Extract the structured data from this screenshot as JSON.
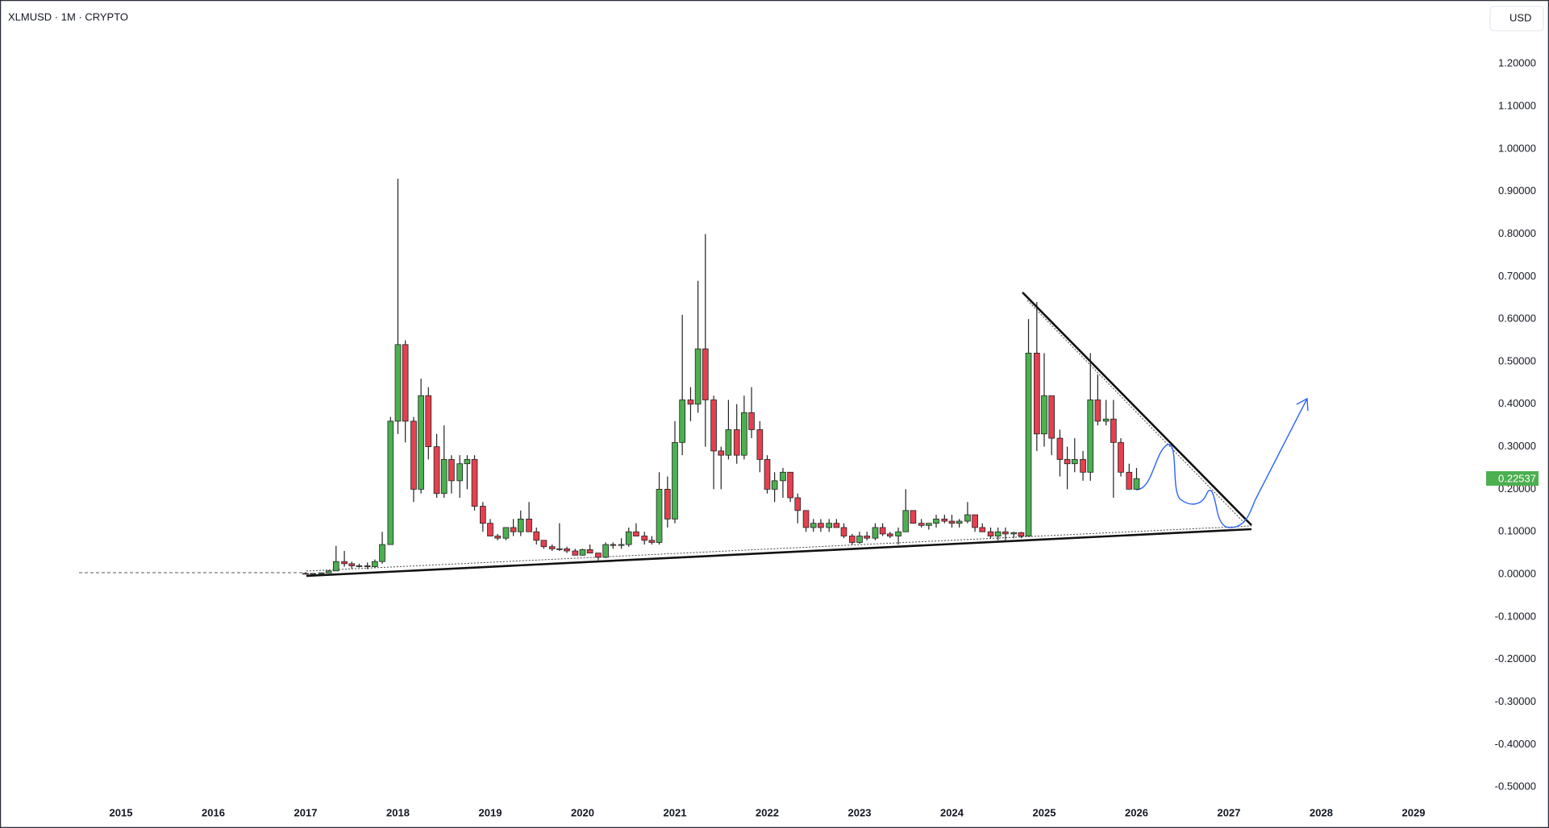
{
  "chart_data": {
    "type": "candlestick",
    "title": "XLMUSD · 1M · CRYPTO",
    "currency": "USD",
    "up_color": "#4caf50",
    "down_color": "#e5404f",
    "grid": false,
    "xlim": [
      2013.69,
      2029.76
    ],
    "xticks": [
      2015,
      2016,
      2017,
      2018,
      2019,
      2020,
      2021,
      2022,
      2023,
      2024,
      2025,
      2026,
      2027,
      2028,
      2029
    ],
    "ylim": [
      -0.53,
      1.35
    ],
    "yticks": [
      {
        "value": -0.5,
        "label": "-0.50000"
      },
      {
        "value": -0.4,
        "label": "-0.40000"
      },
      {
        "value": -0.3,
        "label": "-0.30000"
      },
      {
        "value": -0.2,
        "label": "-0.20000"
      },
      {
        "value": -0.1,
        "label": "-0.10000"
      },
      {
        "value": 0,
        "label": "0.00000"
      },
      {
        "value": 0.1,
        "label": "0.10000"
      },
      {
        "value": 0.2,
        "label": "0.20000"
      },
      {
        "value": 0.3,
        "label": "0.30000"
      },
      {
        "value": 0.4,
        "label": "0.40000"
      },
      {
        "value": 0.5,
        "label": "0.50000"
      },
      {
        "value": 0.6,
        "label": "0.60000"
      },
      {
        "value": 0.7,
        "label": "0.70000"
      },
      {
        "value": 0.8,
        "label": "0.80000"
      },
      {
        "value": 0.9,
        "label": "0.90000"
      },
      {
        "value": 1.0,
        "label": "1.00000"
      },
      {
        "value": 1.1,
        "label": "1.10000"
      },
      {
        "value": 1.2,
        "label": "1.20000"
      }
    ],
    "last_price": 0.22537,
    "x": [
      2017,
      2017.08,
      2017.17,
      2017.25,
      2017.33,
      2017.42,
      2017.5,
      2017.58,
      2017.67,
      2017.75,
      2017.83,
      2017.92,
      2018,
      2018.08,
      2018.17,
      2018.25,
      2018.33,
      2018.42,
      2018.5,
      2018.58,
      2018.67,
      2018.75,
      2018.83,
      2018.92,
      2019,
      2019.08,
      2019.17,
      2019.25,
      2019.33,
      2019.42,
      2019.5,
      2019.58,
      2019.67,
      2019.75,
      2019.83,
      2019.92,
      2020,
      2020.08,
      2020.17,
      2020.25,
      2020.33,
      2020.42,
      2020.5,
      2020.58,
      2020.67,
      2020.75,
      2020.83,
      2020.92,
      2021,
      2021.08,
      2021.17,
      2021.25,
      2021.33,
      2021.42,
      2021.5,
      2021.58,
      2021.67,
      2021.75,
      2021.83,
      2021.92,
      2022,
      2022.08,
      2022.17,
      2022.25,
      2022.33,
      2022.42,
      2022.5,
      2022.58,
      2022.67,
      2022.75,
      2022.83,
      2022.92,
      2023,
      2023.08,
      2023.17,
      2023.25,
      2023.33,
      2023.42,
      2023.5,
      2023.58,
      2023.67,
      2023.75,
      2023.83,
      2023.92,
      2024,
      2024.08,
      2024.17,
      2024.25,
      2024.33,
      2024.42,
      2024.5,
      2024.58,
      2024.67,
      2024.75,
      2024.83,
      2024.92,
      2025,
      2025.08,
      2025.17,
      2025.25,
      2025.33,
      2025.42,
      2025.5,
      2025.58,
      2025.67,
      2025.75,
      2025.83,
      2025.92,
      2026
    ],
    "open": [
      0.0022,
      0.0021,
      0.0021,
      0.0035,
      0.008,
      0.03,
      0.025,
      0.02,
      0.02,
      0.018,
      0.03,
      0.07,
      0.36,
      0.54,
      0.36,
      0.2,
      0.42,
      0.3,
      0.19,
      0.27,
      0.22,
      0.26,
      0.27,
      0.16,
      0.12,
      0.09,
      0.085,
      0.11,
      0.1,
      0.13,
      0.1,
      0.08,
      0.065,
      0.06,
      0.06,
      0.055,
      0.045,
      0.058,
      0.05,
      0.04,
      0.07,
      0.068,
      0.07,
      0.1,
      0.09,
      0.08,
      0.075,
      0.2,
      0.13,
      0.31,
      0.41,
      0.4,
      0.53,
      0.41,
      0.29,
      0.28,
      0.34,
      0.28,
      0.38,
      0.34,
      0.27,
      0.2,
      0.22,
      0.24,
      0.18,
      0.15,
      0.11,
      0.12,
      0.11,
      0.12,
      0.11,
      0.09,
      0.075,
      0.09,
      0.085,
      0.11,
      0.095,
      0.09,
      0.1,
      0.15,
      0.12,
      0.115,
      0.12,
      0.13,
      0.125,
      0.12,
      0.125,
      0.14,
      0.11,
      0.1,
      0.09,
      0.1,
      0.095,
      0.098,
      0.09,
      0.52,
      0.33,
      0.42,
      0.32,
      0.27,
      0.26,
      0.27,
      0.24,
      0.41,
      0.36,
      0.365,
      0.31,
      0.24,
      0.2
    ],
    "high": [
      0.0025,
      0.0024,
      0.004,
      0.01,
      0.067,
      0.055,
      0.03,
      0.025,
      0.028,
      0.035,
      0.1,
      0.37,
      0.93,
      0.55,
      0.37,
      0.46,
      0.44,
      0.33,
      0.35,
      0.28,
      0.28,
      0.28,
      0.28,
      0.17,
      0.13,
      0.095,
      0.11,
      0.13,
      0.15,
      0.17,
      0.11,
      0.08,
      0.07,
      0.12,
      0.065,
      0.06,
      0.06,
      0.07,
      0.05,
      0.075,
      0.075,
      0.085,
      0.11,
      0.12,
      0.1,
      0.09,
      0.24,
      0.23,
      0.36,
      0.61,
      0.44,
      0.69,
      0.8,
      0.42,
      0.3,
      0.41,
      0.4,
      0.42,
      0.44,
      0.36,
      0.28,
      0.24,
      0.25,
      0.24,
      0.19,
      0.15,
      0.13,
      0.13,
      0.13,
      0.13,
      0.12,
      0.095,
      0.1,
      0.1,
      0.12,
      0.12,
      0.1,
      0.11,
      0.2,
      0.15,
      0.13,
      0.12,
      0.14,
      0.14,
      0.14,
      0.13,
      0.17,
      0.14,
      0.12,
      0.11,
      0.11,
      0.11,
      0.1,
      0.1,
      0.6,
      0.64,
      0.52,
      0.42,
      0.34,
      0.3,
      0.32,
      0.29,
      0.52,
      0.47,
      0.41,
      0.41,
      0.32,
      0.26,
      0.25
    ],
    "low": [
      0.0019,
      0.0019,
      0.002,
      0.003,
      0.008,
      0.018,
      0.013,
      0.016,
      0.012,
      0.016,
      0.025,
      0.07,
      0.33,
      0.31,
      0.17,
      0.19,
      0.27,
      0.18,
      0.18,
      0.19,
      0.18,
      0.2,
      0.15,
      0.1,
      0.09,
      0.08,
      0.08,
      0.09,
      0.09,
      0.1,
      0.07,
      0.06,
      0.055,
      0.055,
      0.05,
      0.045,
      0.044,
      0.05,
      0.03,
      0.038,
      0.06,
      0.06,
      0.065,
      0.09,
      0.07,
      0.07,
      0.07,
      0.11,
      0.12,
      0.28,
      0.36,
      0.38,
      0.3,
      0.2,
      0.2,
      0.27,
      0.26,
      0.27,
      0.32,
      0.24,
      0.19,
      0.17,
      0.18,
      0.17,
      0.12,
      0.1,
      0.1,
      0.1,
      0.1,
      0.11,
      0.085,
      0.07,
      0.072,
      0.08,
      0.08,
      0.09,
      0.085,
      0.07,
      0.1,
      0.12,
      0.11,
      0.105,
      0.11,
      0.12,
      0.11,
      0.11,
      0.12,
      0.1,
      0.1,
      0.085,
      0.08,
      0.08,
      0.085,
      0.085,
      0.09,
      0.29,
      0.3,
      0.28,
      0.23,
      0.2,
      0.24,
      0.22,
      0.22,
      0.35,
      0.35,
      0.18,
      0.23,
      0.2,
      0.2
    ],
    "close": [
      0.0021,
      0.0021,
      0.0035,
      0.008,
      0.03,
      0.025,
      0.02,
      0.02,
      0.018,
      0.03,
      0.07,
      0.36,
      0.54,
      0.36,
      0.2,
      0.42,
      0.3,
      0.19,
      0.27,
      0.22,
      0.26,
      0.27,
      0.16,
      0.12,
      0.09,
      0.085,
      0.11,
      0.1,
      0.13,
      0.1,
      0.08,
      0.065,
      0.06,
      0.06,
      0.055,
      0.045,
      0.058,
      0.05,
      0.04,
      0.07,
      0.068,
      0.07,
      0.1,
      0.09,
      0.08,
      0.075,
      0.2,
      0.13,
      0.31,
      0.41,
      0.4,
      0.53,
      0.41,
      0.29,
      0.28,
      0.34,
      0.28,
      0.38,
      0.34,
      0.27,
      0.2,
      0.22,
      0.24,
      0.18,
      0.15,
      0.11,
      0.12,
      0.11,
      0.12,
      0.11,
      0.09,
      0.075,
      0.09,
      0.085,
      0.11,
      0.095,
      0.09,
      0.1,
      0.15,
      0.12,
      0.115,
      0.12,
      0.13,
      0.125,
      0.12,
      0.125,
      0.14,
      0.11,
      0.1,
      0.09,
      0.1,
      0.095,
      0.098,
      0.09,
      0.52,
      0.33,
      0.42,
      0.32,
      0.27,
      0.26,
      0.27,
      0.24,
      0.41,
      0.36,
      0.365,
      0.31,
      0.24,
      0.2,
      0.225
    ]
  }
}
